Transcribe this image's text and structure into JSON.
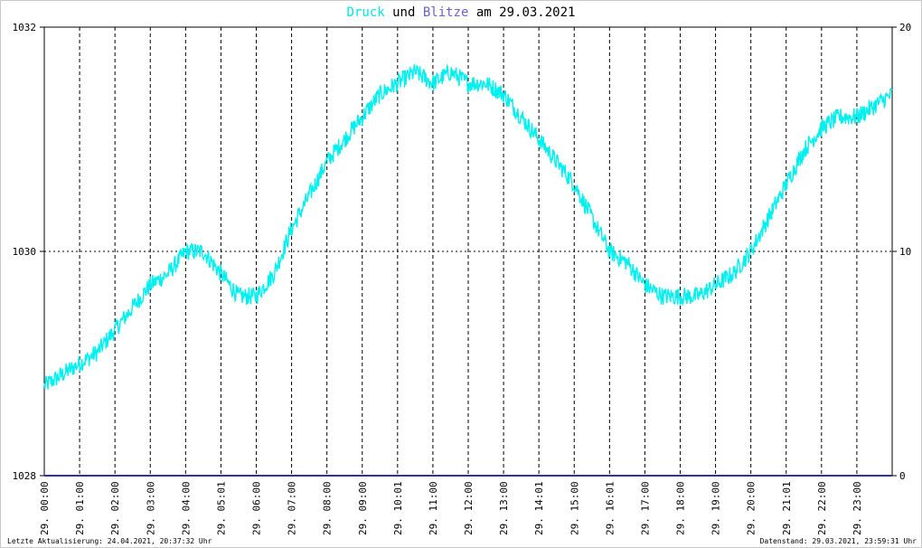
{
  "chart_data": {
    "type": "line",
    "title_parts": [
      {
        "text": "Druck",
        "color": "#00e5e5"
      },
      {
        "text": " und ",
        "color": "#000000"
      },
      {
        "text": "Blitze",
        "color": "#7060c8"
      },
      {
        "text": " am 29.03.2021",
        "color": "#000000"
      }
    ],
    "y_left": {
      "min": 1028,
      "max": 1032,
      "ticks": [
        "1032",
        "1030",
        "1028"
      ]
    },
    "y_right": {
      "min": 0,
      "max": 20,
      "ticks": [
        "20",
        "10",
        "0"
      ]
    },
    "x_ticks": [
      "29. 00:00",
      "29. 01:00",
      "29. 02:00",
      "29. 03:00",
      "29. 04:00",
      "29. 05:01",
      "29. 06:00",
      "29. 07:00",
      "29. 08:00",
      "29. 09:00",
      "29. 10:01",
      "29. 11:00",
      "29. 12:00",
      "29. 13:00",
      "29. 14:01",
      "29. 15:00",
      "29. 16:01",
      "29. 17:00",
      "29. 18:00",
      "29. 19:00",
      "29. 20:00",
      "29. 21:01",
      "29. 22:00",
      "29. 23:00"
    ],
    "x_range_hours": [
      0,
      24
    ],
    "grid": true,
    "series": [
      {
        "name": "Druck",
        "color": "#00f0f0",
        "axis": "left",
        "x_hours": [
          0,
          0.5,
          1,
          1.5,
          2,
          2.5,
          3,
          3.5,
          4,
          4.5,
          5,
          5.5,
          6,
          6.5,
          7,
          7.5,
          8,
          8.5,
          9,
          9.5,
          10,
          10.5,
          11,
          11.5,
          12,
          12.5,
          13,
          13.5,
          14,
          14.5,
          15,
          15.5,
          16,
          16.5,
          17,
          17.5,
          18,
          18.5,
          19,
          19.5,
          20,
          20.5,
          21,
          21.5,
          22,
          22.5,
          23,
          23.5,
          24
        ],
        "values": [
          1028.8,
          1028.9,
          1029.0,
          1029.1,
          1029.3,
          1029.5,
          1029.7,
          1029.8,
          1030.0,
          1030.0,
          1029.8,
          1029.6,
          1029.6,
          1029.8,
          1030.2,
          1030.5,
          1030.8,
          1031.0,
          1031.2,
          1031.4,
          1031.5,
          1031.6,
          1031.5,
          1031.6,
          1031.5,
          1031.5,
          1031.4,
          1031.2,
          1031.0,
          1030.8,
          1030.6,
          1030.3,
          1030.0,
          1029.9,
          1029.7,
          1029.6,
          1029.6,
          1029.6,
          1029.7,
          1029.8,
          1030.0,
          1030.3,
          1030.6,
          1030.9,
          1031.1,
          1031.2,
          1031.2,
          1031.3,
          1031.4
        ],
        "noise_amplitude": 0.08
      },
      {
        "name": "Blitze",
        "color": "#3030a0",
        "axis": "right",
        "x_hours": [
          0,
          24
        ],
        "values": [
          0,
          0
        ]
      }
    ]
  },
  "footer": {
    "left": "Letzte Aktualisierung: 24.04.2021, 20:37:32 Uhr",
    "right": "Datenstand: 29.03.2021, 23:59:31 Uhr"
  }
}
